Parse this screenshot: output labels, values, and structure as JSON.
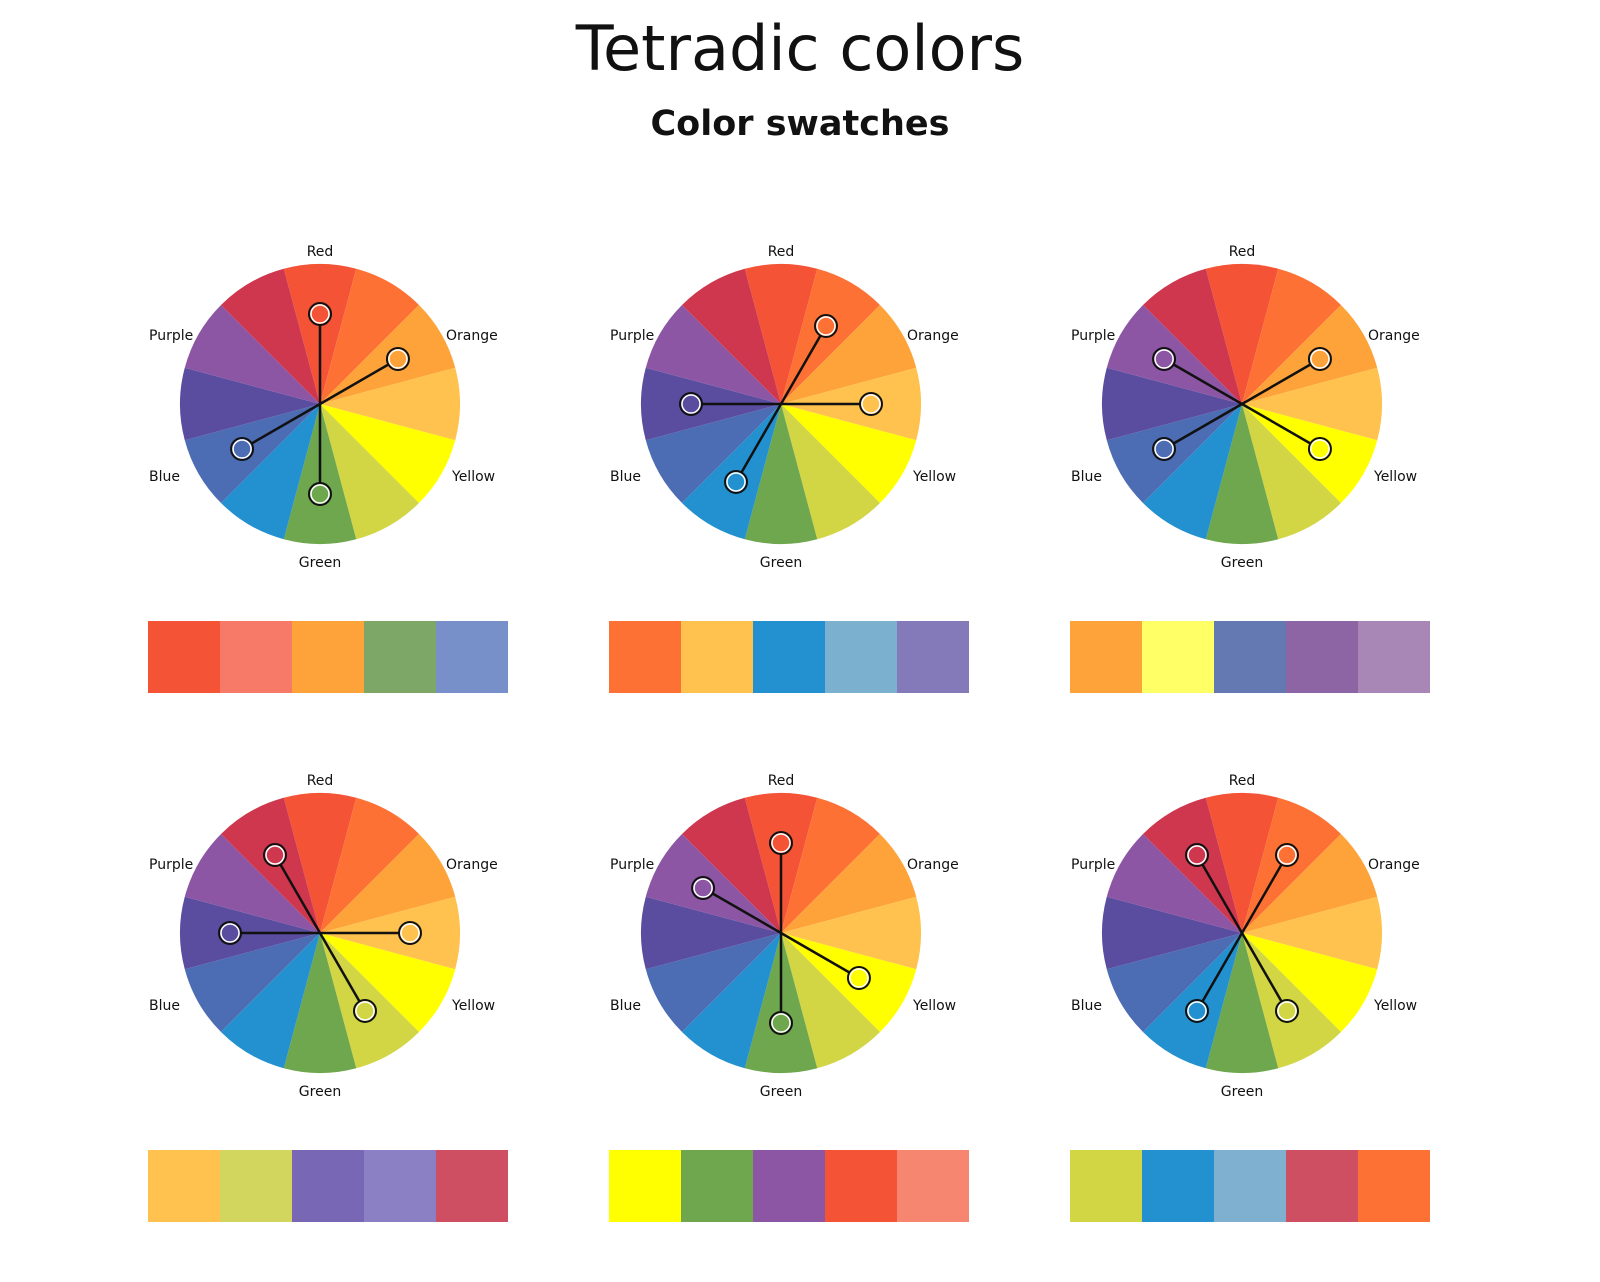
{
  "title": "Tetradic colors",
  "subtitle": "Color swatches",
  "wheel": {
    "segments": [
      {
        "hue": "Red",
        "color": "#F55336"
      },
      {
        "hue": "Red-Orange",
        "color": "#FD7234"
      },
      {
        "hue": "Orange",
        "color": "#FEA23A"
      },
      {
        "hue": "Yellow-Orange",
        "color": "#FFC24E"
      },
      {
        "hue": "Yellow",
        "color": "#FFFF00"
      },
      {
        "hue": "Yellow-Green",
        "color": "#D2D544"
      },
      {
        "hue": "Green",
        "color": "#6FA74E"
      },
      {
        "hue": "Blue-Green",
        "color": "#2391CF"
      },
      {
        "hue": "Blue",
        "color": "#4C6CB4"
      },
      {
        "hue": "Blue-Purple",
        "color": "#5A4C9F"
      },
      {
        "hue": "Purple",
        "color": "#8C56A4"
      },
      {
        "hue": "Red-Purple",
        "color": "#CE374E"
      }
    ],
    "labels": {
      "red": "Red",
      "orange": "Orange",
      "yellow": "Yellow",
      "green": "Green",
      "blue": "Blue",
      "purple": "Purple"
    }
  },
  "panels": [
    {
      "markers": [
        0,
        2,
        6,
        8
      ],
      "swatches": [
        "#F55336",
        "#F67A67",
        "#FEA23A",
        "#7DA767",
        "#7790CA"
      ]
    },
    {
      "markers": [
        1,
        3,
        7,
        9
      ],
      "swatches": [
        "#FD7234",
        "#FFC24E",
        "#2391CF",
        "#7BB0CF",
        "#847AB9"
      ]
    },
    {
      "markers": [
        2,
        4,
        8,
        10
      ],
      "swatches": [
        "#FEA23A",
        "#FFFF66",
        "#6478B2",
        "#8E65A4",
        "#A886B5"
      ]
    },
    {
      "markers": [
        3,
        5,
        9,
        11
      ],
      "swatches": [
        "#FFC24E",
        "#D2D55E",
        "#7767B5",
        "#8C80C5",
        "#CE4E62"
      ]
    },
    {
      "markers": [
        4,
        6,
        10,
        0
      ],
      "swatches": [
        "#FFFF00",
        "#6FA74E",
        "#8C56A4",
        "#F55336",
        "#F68670"
      ]
    },
    {
      "markers": [
        5,
        7,
        11,
        1
      ],
      "swatches": [
        "#D2D544",
        "#2391CF",
        "#80B0CF",
        "#CE4E62",
        "#FD7234"
      ]
    }
  ]
}
